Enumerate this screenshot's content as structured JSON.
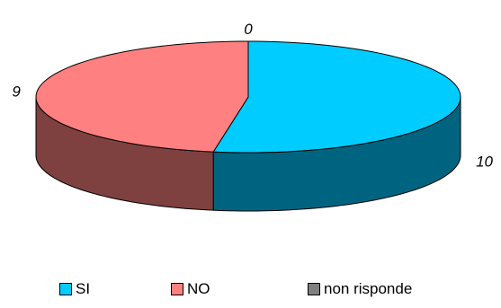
{
  "chart_data": {
    "type": "pie",
    "categories": [
      "SI",
      "NO",
      "non risponde"
    ],
    "values": [
      10,
      9,
      0
    ],
    "colors": {
      "top": [
        "#00ccff",
        "#ff8080",
        "#808080"
      ],
      "side": [
        "#006480",
        "#7f4040",
        "#404040"
      ]
    },
    "legend_position": "bottom",
    "style": "3d"
  }
}
